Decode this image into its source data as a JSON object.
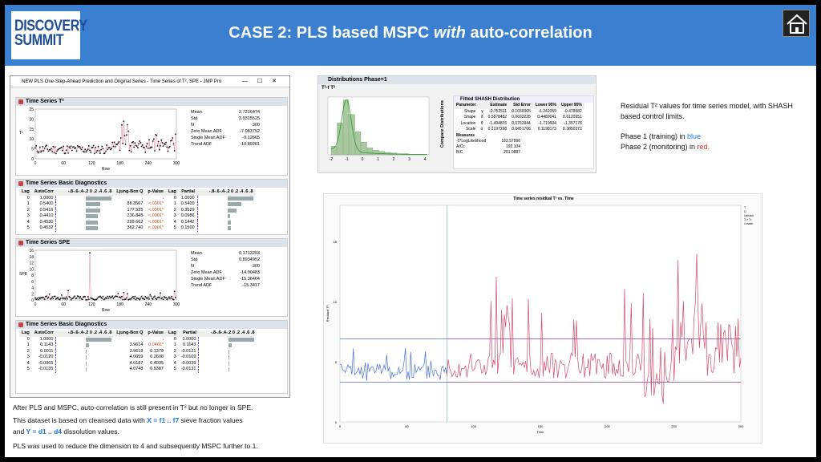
{
  "header": {
    "logo_tagline": "",
    "logo_line1": "DISCOVERY",
    "logo_line2": "SUMMIT",
    "title_pre": "CASE 2: PLS based MSPC ",
    "title_italic": "with",
    "title_post": " auto-correlation"
  },
  "jmp_window": {
    "title": "NEW PLS One-Step-Ahead Prediction and Original Series - Time Series of T², SPE - JMP Pro",
    "controls": [
      "—",
      "☐",
      "✕"
    ],
    "ts_t2": {
      "header": "Time Series T²",
      "ylabel": "T²",
      "xlabel": "Row",
      "yticks": [
        "25",
        "20",
        "15",
        "10",
        "5",
        "0"
      ],
      "xticks": [
        "0",
        "60",
        "120",
        "180",
        "240",
        "300"
      ],
      "stats": [
        [
          "Mean",
          "2.7216474"
        ],
        [
          "Std",
          "3.9315525"
        ],
        [
          "N",
          "300"
        ],
        [
          "Zero Mean ADF",
          "-7.083752"
        ],
        [
          "Single Mean ADF",
          "-9.12665"
        ],
        [
          "Trend ADF",
          "-10.89201"
        ]
      ]
    },
    "diag1": {
      "header": "Time Series Basic Diagnostics",
      "cols": [
        "Lag",
        "AutoCorr",
        "-.8-.6-.4-.2 0 .2 .4 .6 .8",
        "Ljung-Box Q",
        "p-Value",
        "Lag",
        "Partial",
        "-.8-.6-.4-.2 0 .2 .4 .6 .8"
      ],
      "rows": [
        {
          "lag": "0",
          "ac": "1.0000",
          "q": ".",
          "p": ".",
          "lag2": "0",
          "pc": "1.0000"
        },
        {
          "lag": "1",
          "ac": "0.5400",
          "q": "88.3507",
          "p": "<.0001*",
          "lag2": "1",
          "pc": "0.5400"
        },
        {
          "lag": "2",
          "ac": "0.5416",
          "q": "177.525",
          "p": "<.0001*",
          "lag2": "2",
          "pc": "0.3529"
        },
        {
          "lag": "3",
          "ac": "0.4410",
          "q": "236.845",
          "p": "<.0001*",
          "lag2": "3",
          "pc": "0.0986"
        },
        {
          "lag": "4",
          "ac": "0.4530",
          "q": "299.662",
          "p": "<.0001*",
          "lag2": "4",
          "pc": "0.1442"
        },
        {
          "lag": "5",
          "ac": "0.4532",
          "q": "362.740",
          "p": "<.0001*",
          "lag2": "5",
          "pc": "0.1500"
        }
      ]
    },
    "ts_spe": {
      "header": "Time Series SPE",
      "ylabel": "SPE",
      "xlabel": "Row",
      "yticks": [
        "16",
        "14",
        "12",
        "10",
        "8",
        "6",
        "4",
        "2",
        "0"
      ],
      "xticks": [
        "0",
        "60",
        "120",
        "180",
        "240",
        "300"
      ],
      "stats": [
        [
          "Mean",
          "0.1713293"
        ],
        [
          "Std",
          "0.8934952"
        ],
        [
          "N",
          "300"
        ],
        [
          "Zero Mean ADF",
          "-14.90483"
        ],
        [
          "Single Mean ADF",
          "-15.36464"
        ],
        [
          "Trend ADF",
          "-15.3417"
        ]
      ]
    },
    "diag2": {
      "header": "Time Series Basic Diagnostics",
      "rows": [
        {
          "lag": "0",
          "ac": "1.0000",
          "q": ".",
          "p": ".",
          "lag2": "0",
          "pc": "1.0000"
        },
        {
          "lag": "1",
          "ac": "0.1143",
          "q": "3.9614",
          "p": "0.0466*",
          "lag2": "1",
          "pc": "0.1143"
        },
        {
          "lag": "2",
          "ac": "0.0011",
          "q": "3.9618",
          "p": "0.1379",
          "lag2": "2",
          "pc": "-0.0121"
        },
        {
          "lag": "3",
          "ac": "-0.0120",
          "q": "4.0059",
          "p": "0.2608",
          "lag2": "3",
          "pc": "-0.0109"
        },
        {
          "lag": "4",
          "ac": "-0.0065",
          "q": "4.0187",
          "p": "0.4035",
          "lag2": "4",
          "pc": "-0.0039"
        },
        {
          "lag": "5",
          "ac": "-0.0135",
          "q": "4.0748",
          "p": "0.5387",
          "lag2": "5",
          "pc": "-0.0131"
        }
      ]
    }
  },
  "dist": {
    "header": "Distributions Phase=1",
    "sub": "T²-f T²",
    "xticks": [
      "-2",
      "-1",
      "0",
      "1",
      "2",
      "3",
      "4"
    ],
    "compare": "Compare Distributions",
    "fitted_header": "Fitted SHASH Distribution",
    "cols": [
      "Parameter",
      "",
      "Estimate",
      "Std Error",
      "Lower 95%",
      "Upper 95%"
    ],
    "rows": [
      [
        "Shape",
        "γ",
        "-0.752511",
        "0.1650005",
        "-1.242059",
        "-0.478582"
      ],
      [
        "Shape",
        "δ",
        "0.5878452",
        "0.0692228",
        "0.4489041",
        "0.6120951"
      ],
      [
        "Location",
        "θ",
        "-1.494876",
        "0.0762944",
        "-1.719604",
        "-1.357178"
      ],
      [
        "Scale",
        "σ",
        "0.2197298",
        "0.0451766",
        "0.1198173",
        "0.3850372"
      ]
    ],
    "measures_label": "Measures",
    "measures": [
      [
        "-2*LogLikelihood",
        "183.57996"
      ],
      [
        "AICc",
        "192.104"
      ],
      [
        "BIC",
        "201.0887"
      ]
    ]
  },
  "side_text": {
    "line1": "Residual T² values for time series model, with SHASH based control limits.",
    "line2_pre": "Phase 1 (training) in ",
    "line2_col": "blue",
    "line3_pre": "Phase 2 (monitoring) in ",
    "line3_col": "red."
  },
  "ts_chart": {
    "title": "Time series residual T² vs. Time",
    "xlabel": "Time",
    "ylabel": "Residual T²",
    "yticks": [
      "15",
      "10",
      "5",
      "0"
    ],
    "xticks": [
      "0",
      "50",
      "100",
      "150",
      "200",
      "250",
      "300"
    ],
    "legend": [
      "T",
      "U",
      "Ushash",
      "T² f T²",
      "Lshash"
    ]
  },
  "bottom_text": {
    "l1": "After PLS and MSPC, auto-correlation is still present in T² but no longer in SPE.",
    "l2_pre": "This dataset is based on cleansed data with ",
    "l2_x": "X = f1 .. f7",
    "l2_post": " sieve fraction values",
    "l3_pre": "and  ",
    "l3_y": "Y = d1 .. d4",
    "l3_post": " dissolution values.",
    "l4": "PLS was used to reduce the dimension to 4 and subsequently MSPC further to 1."
  },
  "colors": {
    "header_bg": "#3b7fd0",
    "phase1": "#4a6fd0",
    "phase2": "#d24a6a"
  }
}
